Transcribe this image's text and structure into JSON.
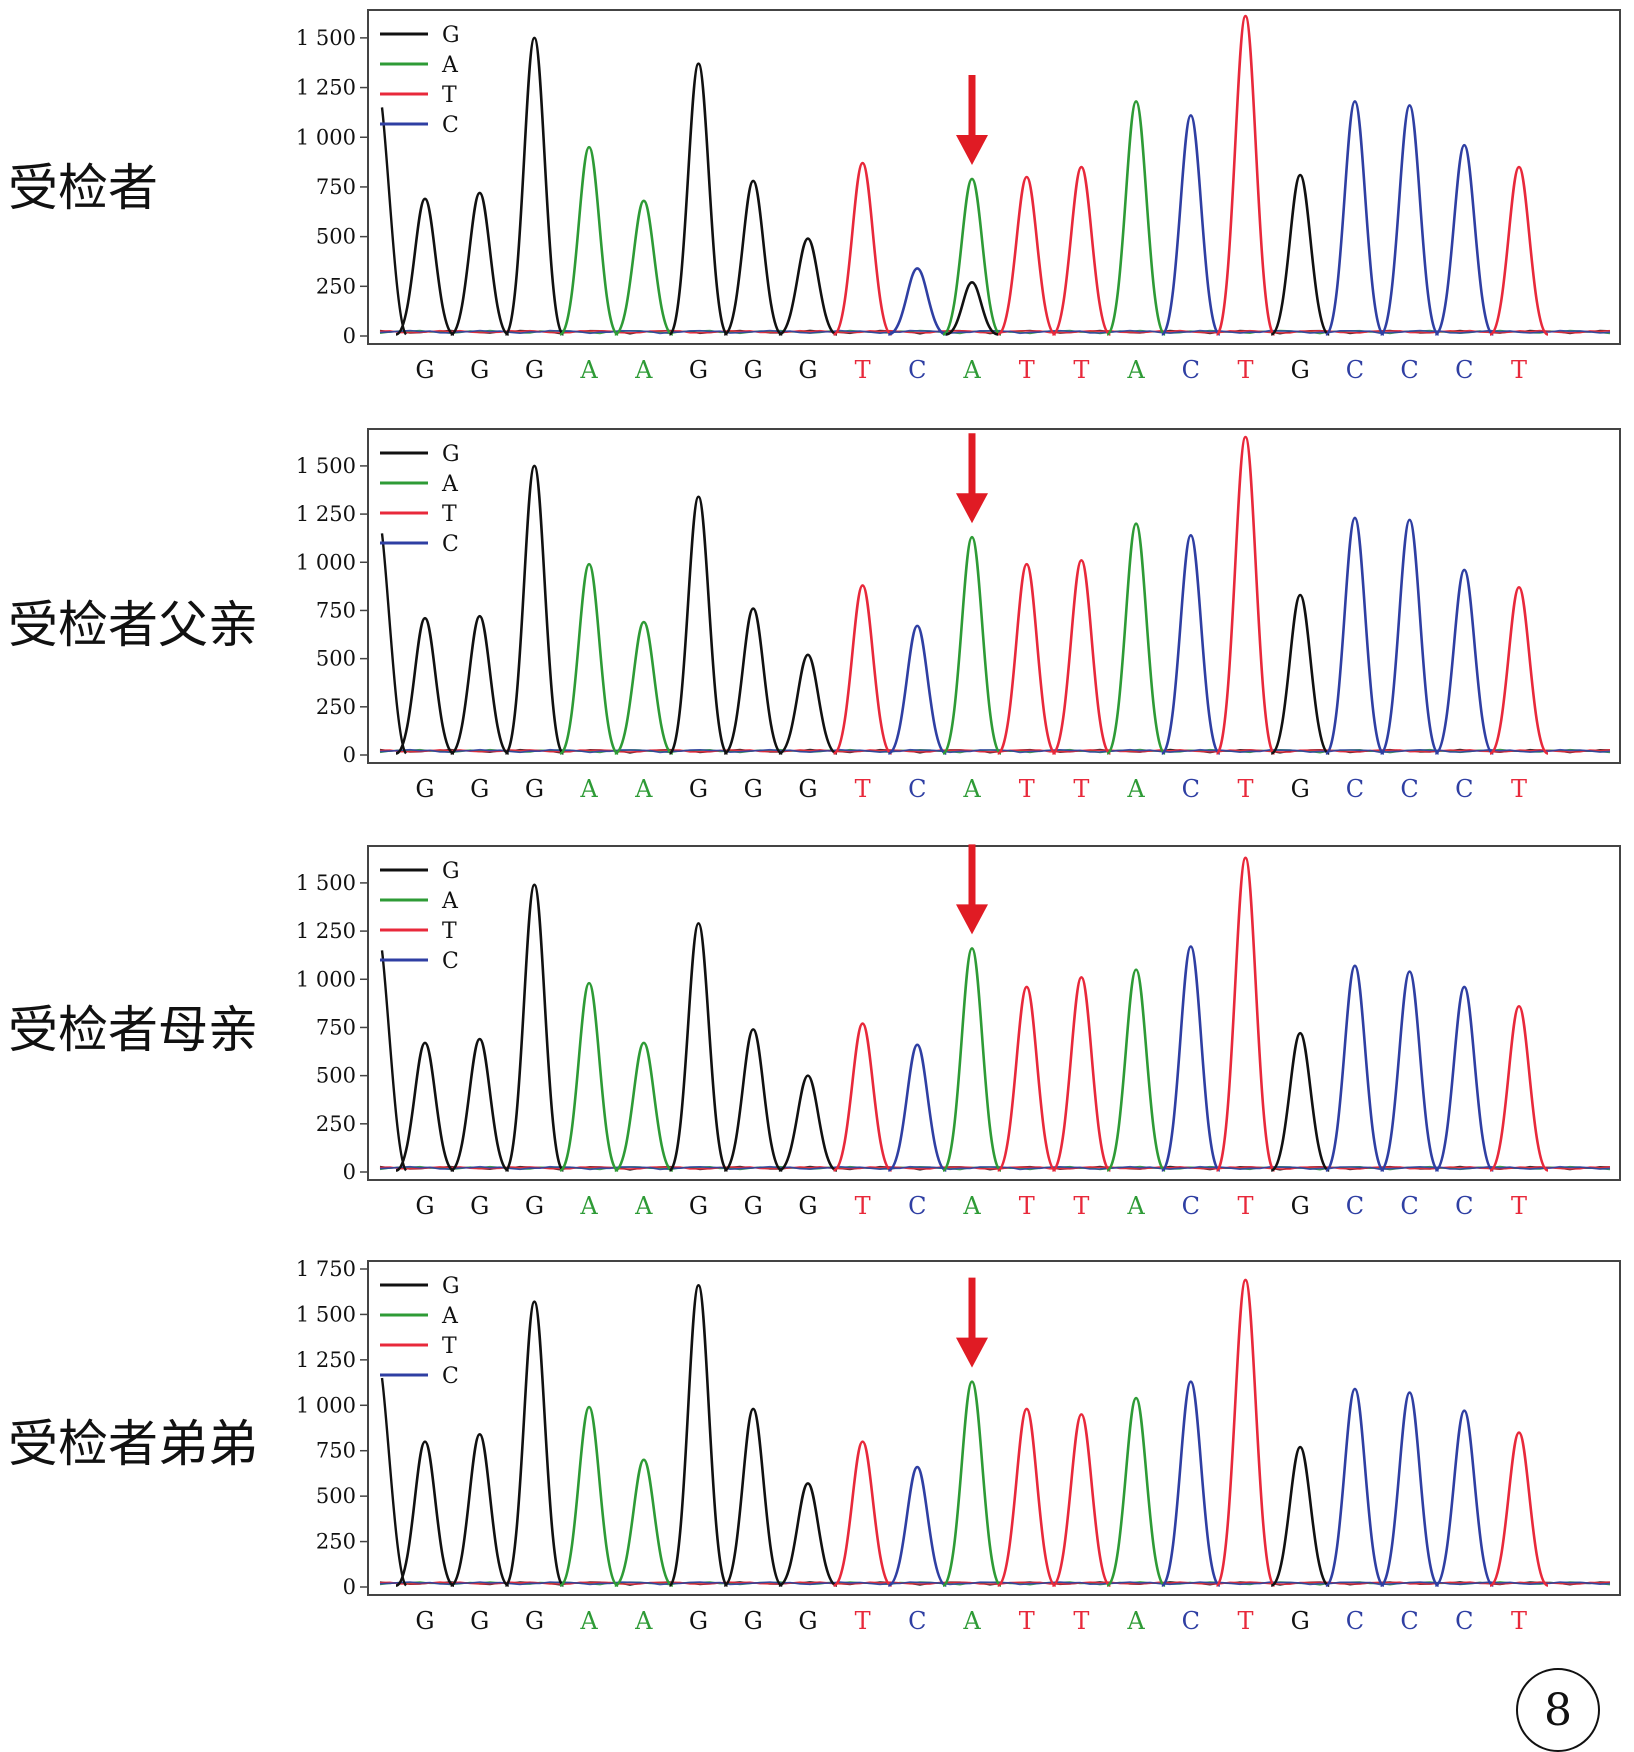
{
  "figure_number": "8",
  "colors": {
    "G": "#111111",
    "A": "#2e9b36",
    "T": "#e8293b",
    "C": "#2f3fa3",
    "arrow": "#e01b24"
  },
  "chart_data": [
    {
      "type": "line",
      "panel_label": "受检者",
      "ylim": [
        0,
        1600
      ],
      "yticks": [
        0,
        250,
        500,
        750,
        1000,
        1250,
        1500
      ],
      "ytick_labels": [
        "0",
        "250",
        "500",
        "750",
        "1 000",
        "1 250",
        "1 500"
      ],
      "legend": [
        "G",
        "A",
        "T",
        "C"
      ],
      "legend_position": "top-left",
      "bases": [
        "G",
        "G",
        "G",
        "A",
        "A",
        "G",
        "G",
        "G",
        "T",
        "C",
        "A",
        "T",
        "T",
        "A",
        "C",
        "T",
        "G",
        "C",
        "C",
        "C",
        "T"
      ],
      "peaks": [
        690,
        720,
        1500,
        950,
        680,
        1370,
        780,
        490,
        870,
        340,
        790,
        800,
        850,
        1180,
        1110,
        1610,
        810,
        1180,
        1160,
        960,
        850
      ],
      "secondary_peak": {
        "base_index": 10,
        "base": "G",
        "value": 270
      },
      "arrow_base_index": 10
    },
    {
      "type": "line",
      "panel_label": "受检者父亲",
      "ylim": [
        0,
        1650
      ],
      "yticks": [
        0,
        250,
        500,
        750,
        1000,
        1250,
        1500
      ],
      "ytick_labels": [
        "0",
        "250",
        "500",
        "750",
        "1 000",
        "1 250",
        "1 500"
      ],
      "legend": [
        "G",
        "A",
        "T",
        "C"
      ],
      "legend_position": "top-left",
      "bases": [
        "G",
        "G",
        "G",
        "A",
        "A",
        "G",
        "G",
        "G",
        "T",
        "C",
        "A",
        "T",
        "T",
        "A",
        "C",
        "T",
        "G",
        "C",
        "C",
        "C",
        "T"
      ],
      "peaks": [
        710,
        720,
        1500,
        990,
        690,
        1340,
        760,
        520,
        880,
        670,
        1130,
        990,
        1010,
        1200,
        1140,
        1650,
        830,
        1230,
        1220,
        960,
        870
      ],
      "arrow_base_index": 10
    },
    {
      "type": "line",
      "panel_label": "受检者母亲",
      "ylim": [
        0,
        1650
      ],
      "yticks": [
        0,
        250,
        500,
        750,
        1000,
        1250,
        1500
      ],
      "ytick_labels": [
        "0",
        "250",
        "500",
        "750",
        "1 000",
        "1 250",
        "1 500"
      ],
      "legend": [
        "G",
        "A",
        "T",
        "C"
      ],
      "legend_position": "top-left",
      "bases": [
        "G",
        "G",
        "G",
        "A",
        "A",
        "G",
        "G",
        "G",
        "T",
        "C",
        "A",
        "T",
        "T",
        "A",
        "C",
        "T",
        "G",
        "C",
        "C",
        "C",
        "T"
      ],
      "peaks": [
        670,
        690,
        1490,
        980,
        670,
        1290,
        740,
        500,
        770,
        660,
        1160,
        960,
        1010,
        1050,
        1170,
        1630,
        720,
        1070,
        1040,
        960,
        860
      ],
      "arrow_base_index": 10
    },
    {
      "type": "line",
      "panel_label": "受检者弟弟",
      "ylim": [
        0,
        1750
      ],
      "yticks": [
        0,
        250,
        500,
        750,
        1000,
        1250,
        1500,
        1750
      ],
      "ytick_labels": [
        "0",
        "250",
        "500",
        "750",
        "1 000",
        "1 250",
        "1 500",
        "1 750"
      ],
      "legend": [
        "G",
        "A",
        "T",
        "C"
      ],
      "legend_position": "top-left",
      "bases": [
        "G",
        "G",
        "G",
        "A",
        "A",
        "G",
        "G",
        "G",
        "T",
        "C",
        "A",
        "T",
        "T",
        "A",
        "C",
        "T",
        "G",
        "C",
        "C",
        "C",
        "T"
      ],
      "peaks": [
        800,
        840,
        1570,
        990,
        700,
        1660,
        980,
        570,
        800,
        660,
        1130,
        980,
        950,
        1040,
        1130,
        1690,
        770,
        1090,
        1070,
        970,
        850
      ],
      "arrow_base_index": 10
    }
  ]
}
